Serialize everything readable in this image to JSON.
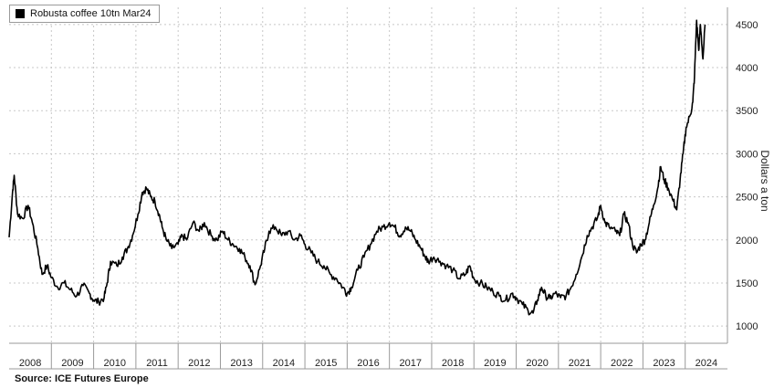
{
  "chart_data": {
    "type": "line",
    "title": "",
    "xlabel": "",
    "ylabel": "Dollars a ton",
    "ylim": [
      800,
      4700
    ],
    "xlim": [
      2008.0,
      2025.0
    ],
    "yticks": [
      1000,
      1500,
      2000,
      2500,
      3000,
      3500,
      4000,
      4500
    ],
    "xticks": [
      "2008",
      "2009",
      "2010",
      "2011",
      "2012",
      "2013",
      "2014",
      "2015",
      "2016",
      "2017",
      "2018",
      "2019",
      "2020",
      "2021",
      "2022",
      "2023",
      "2024"
    ],
    "grid": true,
    "legend_position": "top-left",
    "series": [
      {
        "name": "Robusta coffee 10tn Mar24",
        "color": "#000000",
        "points": [
          [
            2008.0,
            2030
          ],
          [
            2008.08,
            2550
          ],
          [
            2008.12,
            2750
          ],
          [
            2008.2,
            2300
          ],
          [
            2008.32,
            2250
          ],
          [
            2008.45,
            2400
          ],
          [
            2008.55,
            2200
          ],
          [
            2008.68,
            1900
          ],
          [
            2008.78,
            1600
          ],
          [
            2008.9,
            1700
          ],
          [
            2009.0,
            1560
          ],
          [
            2009.15,
            1450
          ],
          [
            2009.3,
            1500
          ],
          [
            2009.45,
            1420
          ],
          [
            2009.6,
            1350
          ],
          [
            2009.75,
            1470
          ],
          [
            2009.9,
            1380
          ],
          [
            2010.0,
            1300
          ],
          [
            2010.12,
            1280
          ],
          [
            2010.25,
            1330
          ],
          [
            2010.32,
            1500
          ],
          [
            2010.4,
            1750
          ],
          [
            2010.55,
            1700
          ],
          [
            2010.68,
            1800
          ],
          [
            2010.8,
            1900
          ],
          [
            2010.92,
            2050
          ],
          [
            2011.05,
            2300
          ],
          [
            2011.15,
            2550
          ],
          [
            2011.25,
            2600
          ],
          [
            2011.35,
            2500
          ],
          [
            2011.45,
            2450
          ],
          [
            2011.55,
            2300
          ],
          [
            2011.62,
            2150
          ],
          [
            2011.72,
            2000
          ],
          [
            2011.85,
            1900
          ],
          [
            2012.0,
            1950
          ],
          [
            2012.1,
            2050
          ],
          [
            2012.2,
            2000
          ],
          [
            2012.35,
            2200
          ],
          [
            2012.5,
            2100
          ],
          [
            2012.62,
            2200
          ],
          [
            2012.78,
            2050
          ],
          [
            2012.92,
            2000
          ],
          [
            2013.05,
            2100
          ],
          [
            2013.18,
            2000
          ],
          [
            2013.3,
            1950
          ],
          [
            2013.45,
            1900
          ],
          [
            2013.58,
            1800
          ],
          [
            2013.7,
            1700
          ],
          [
            2013.82,
            1480
          ],
          [
            2013.95,
            1700
          ],
          [
            2014.05,
            1900
          ],
          [
            2014.15,
            2100
          ],
          [
            2014.3,
            2150
          ],
          [
            2014.45,
            2050
          ],
          [
            2014.6,
            2100
          ],
          [
            2014.75,
            2000
          ],
          [
            2014.9,
            2050
          ],
          [
            2015.0,
            1950
          ],
          [
            2015.15,
            1850
          ],
          [
            2015.3,
            1750
          ],
          [
            2015.45,
            1700
          ],
          [
            2015.6,
            1600
          ],
          [
            2015.75,
            1550
          ],
          [
            2015.9,
            1450
          ],
          [
            2016.0,
            1380
          ],
          [
            2016.1,
            1450
          ],
          [
            2016.25,
            1650
          ],
          [
            2016.4,
            1800
          ],
          [
            2016.55,
            1950
          ],
          [
            2016.7,
            2100
          ],
          [
            2016.85,
            2150
          ],
          [
            2017.0,
            2200
          ],
          [
            2017.12,
            2150
          ],
          [
            2017.25,
            2050
          ],
          [
            2017.38,
            2150
          ],
          [
            2017.5,
            2100
          ],
          [
            2017.62,
            2000
          ],
          [
            2017.75,
            1900
          ],
          [
            2017.85,
            1800
          ],
          [
            2017.92,
            1750
          ],
          [
            2018.05,
            1800
          ],
          [
            2018.2,
            1750
          ],
          [
            2018.35,
            1700
          ],
          [
            2018.5,
            1650
          ],
          [
            2018.65,
            1550
          ],
          [
            2018.8,
            1600
          ],
          [
            2018.9,
            1700
          ],
          [
            2019.0,
            1550
          ],
          [
            2019.15,
            1500
          ],
          [
            2019.3,
            1450
          ],
          [
            2019.45,
            1400
          ],
          [
            2019.6,
            1350
          ],
          [
            2019.75,
            1300
          ],
          [
            2019.9,
            1380
          ],
          [
            2020.0,
            1330
          ],
          [
            2020.15,
            1250
          ],
          [
            2020.28,
            1180
          ],
          [
            2020.4,
            1150
          ],
          [
            2020.5,
            1300
          ],
          [
            2020.6,
            1450
          ],
          [
            2020.7,
            1350
          ],
          [
            2020.8,
            1320
          ],
          [
            2020.92,
            1380
          ],
          [
            2021.05,
            1330
          ],
          [
            2021.18,
            1350
          ],
          [
            2021.3,
            1450
          ],
          [
            2021.42,
            1600
          ],
          [
            2021.55,
            1800
          ],
          [
            2021.68,
            2050
          ],
          [
            2021.8,
            2150
          ],
          [
            2021.92,
            2250
          ],
          [
            2022.0,
            2400
          ],
          [
            2022.1,
            2200
          ],
          [
            2022.2,
            2150
          ],
          [
            2022.35,
            2100
          ],
          [
            2022.45,
            2050
          ],
          [
            2022.55,
            2300
          ],
          [
            2022.65,
            2200
          ],
          [
            2022.75,
            1950
          ],
          [
            2022.85,
            1850
          ],
          [
            2022.95,
            1950
          ],
          [
            2023.05,
            2000
          ],
          [
            2023.15,
            2200
          ],
          [
            2023.25,
            2400
          ],
          [
            2023.35,
            2600
          ],
          [
            2023.42,
            2850
          ],
          [
            2023.5,
            2700
          ],
          [
            2023.6,
            2600
          ],
          [
            2023.72,
            2450
          ],
          [
            2023.8,
            2350
          ],
          [
            2023.88,
            2700
          ],
          [
            2023.95,
            3000
          ],
          [
            2024.02,
            3300
          ],
          [
            2024.12,
            3450
          ],
          [
            2024.18,
            3600
          ],
          [
            2024.22,
            3900
          ],
          [
            2024.27,
            4550
          ],
          [
            2024.32,
            4200
          ],
          [
            2024.36,
            4500
          ],
          [
            2024.42,
            4100
          ],
          [
            2024.47,
            4500
          ]
        ]
      }
    ]
  },
  "legend": {
    "label": "Robusta coffee 10tn Mar24",
    "swatch_color": "#000000"
  },
  "axis": {
    "ylabel": "Dollars a ton"
  },
  "footer": {
    "source": "Source: ICE Futures Europe"
  }
}
